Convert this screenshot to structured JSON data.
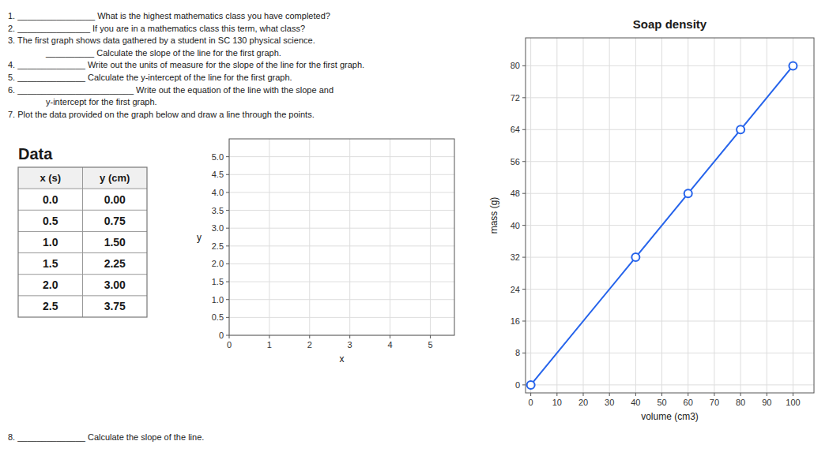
{
  "chart_data": [
    {
      "type": "text",
      "annotations": [
        "1.  ________________  What is the highest mathematics class you have completed?",
        "2.  _______________  If you are in a mathematics class this term, what class?",
        "3.  The first graph shows data gathered by a student in SC 130 physical science.",
        "__________  Calculate the slope of the line for the first graph.",
        "4.  ______________  Write out the units of measure for the slope of the line for the first graph.",
        "5.  ______________  Calculate the y-intercept of the line for the first graph.",
        "6.  ________________________  Write out the equation of the line with the slope and",
        "y-intercept for the first graph.",
        "7.  Plot the data provided on the graph below and draw a line through the points.",
        "8.  ______________  Calculate the slope of the line."
      ]
    },
    {
      "type": "table",
      "title": "Data",
      "columns": [
        "x (s)",
        "y (cm)"
      ],
      "categories": [
        "0.0",
        "0.5",
        "1.0",
        "1.5",
        "2.0",
        "2.5"
      ],
      "values": [
        0.0,
        0.75,
        1.5,
        2.25,
        3.0,
        3.75
      ],
      "value_labels": [
        "0.00",
        "0.75",
        "1.50",
        "2.25",
        "3.00",
        "3.75"
      ]
    },
    {
      "type": "scatter",
      "xlabel": "x",
      "ylabel": "y",
      "x": [],
      "values": [],
      "xlim": [
        0,
        5.6
      ],
      "ylim": [
        0,
        5.5
      ],
      "xticks": [
        0,
        1,
        2,
        3,
        4,
        5
      ],
      "yticks": [
        0,
        0.5,
        {
          "value": 1,
          "label": "1.0"
        },
        1.5,
        {
          "value": 2,
          "label": "2.0"
        },
        2.5,
        {
          "value": 3,
          "label": "3.0"
        },
        3.5,
        {
          "value": 4,
          "label": "4.0"
        },
        4.5,
        {
          "value": 5,
          "label": "5.0"
        }
      ],
      "grid": true
    },
    {
      "type": "line",
      "title": "Soap density",
      "xlabel": "volume (cm3)",
      "ylabel": "mass (g)",
      "x": [
        0,
        40,
        60,
        80,
        100
      ],
      "values": [
        0,
        32,
        48,
        64,
        80
      ],
      "marker": "circle",
      "xlim": [
        -2,
        108
      ],
      "ylim": [
        -2,
        87
      ],
      "xticks": [
        0,
        10,
        20,
        30,
        40,
        50,
        60,
        70,
        80,
        90,
        100
      ],
      "yticks": [
        0,
        8,
        16,
        24,
        32,
        40,
        48,
        56,
        64,
        72,
        80
      ],
      "grid": true
    }
  ]
}
